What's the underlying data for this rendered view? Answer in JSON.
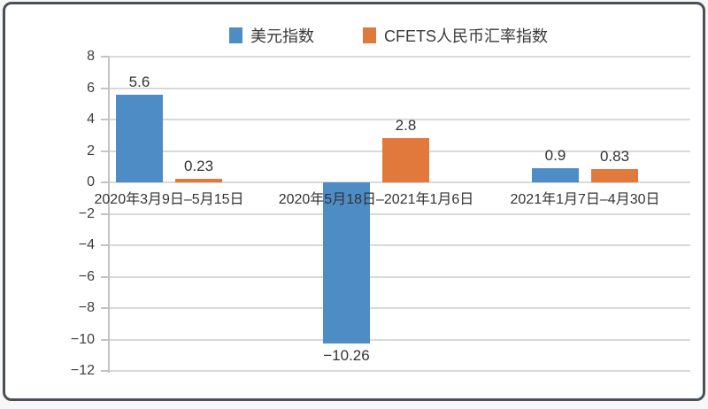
{
  "chart_data": {
    "type": "bar",
    "title": "",
    "xlabel": "",
    "ylabel": "",
    "categories": [
      "2020年3月9日–5月15日",
      "2020年5月18日–2021年1月6日",
      "2021年1月7日–4月30日"
    ],
    "series": [
      {
        "name": "美元指数",
        "color": "#4e8cc6",
        "values": [
          5.6,
          -10.26,
          0.9
        ],
        "value_labels": [
          "5.6",
          "−10.26",
          "0.9"
        ]
      },
      {
        "name": "CFETS人民币汇率指数",
        "color": "#e1793c",
        "values": [
          0.23,
          2.8,
          0.83
        ],
        "value_labels": [
          "0.23",
          "2.8",
          "0.83"
        ]
      }
    ],
    "ylim": [
      -12,
      8
    ],
    "ytick_step": 2,
    "ytick_labels": [
      "8",
      "6",
      "4",
      "2",
      "0",
      "−2",
      "−4",
      "−6",
      "−8",
      "−10",
      "−12"
    ],
    "grid": true,
    "legend_position": "top"
  },
  "colors": {
    "gridline": "#d9d9d9",
    "axis": "#c3c3c3",
    "text": "#333333",
    "frame_border": "#4a4f58",
    "background": "#ffffff"
  }
}
